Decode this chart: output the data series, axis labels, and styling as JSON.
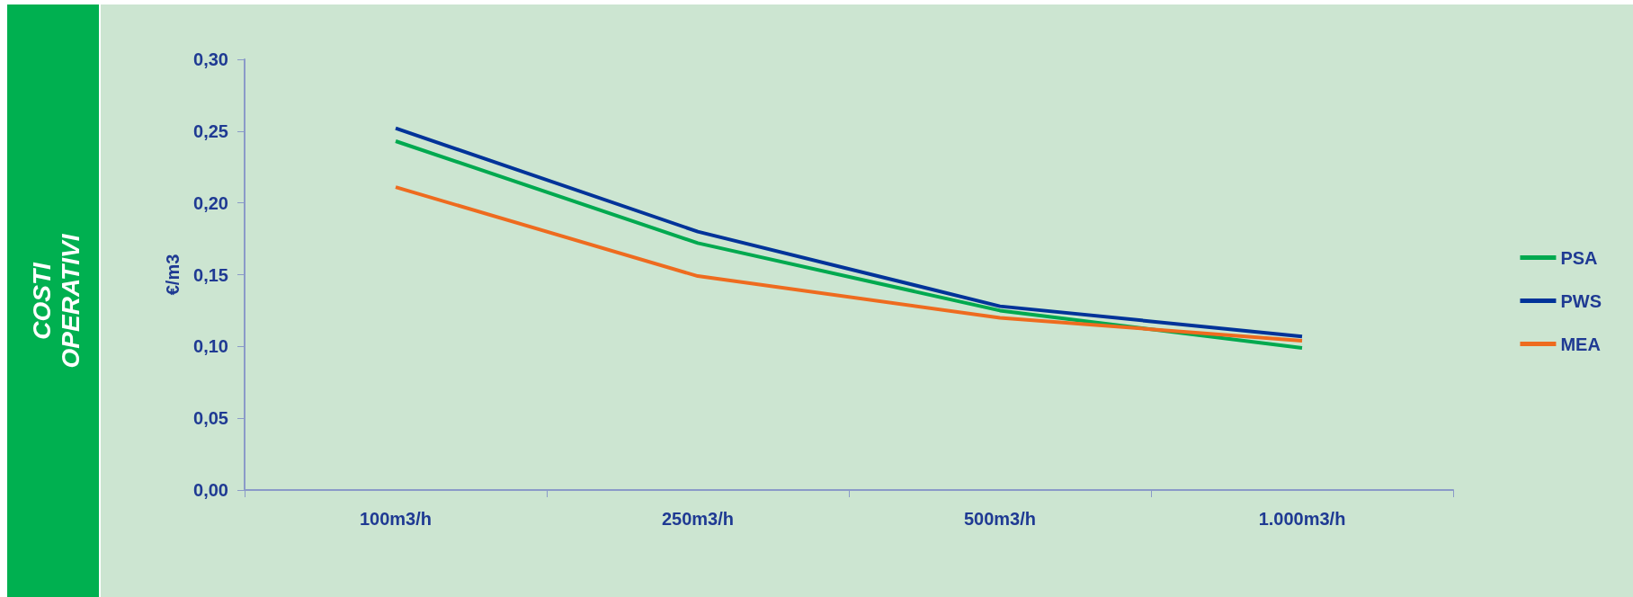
{
  "chart_data": {
    "type": "line",
    "title": "COSTI\nOPERATIVI",
    "ylabel": "€/m3",
    "categories": [
      "100m3/h",
      "250m3/h",
      "500m3/h",
      "1.000m3/h"
    ],
    "series": [
      {
        "name": "PSA",
        "color": "#00a94f",
        "values": [
          0.243,
          0.172,
          0.125,
          0.099
        ]
      },
      {
        "name": "PWS",
        "color": "#003399",
        "values": [
          0.252,
          0.18,
          0.128,
          0.107
        ]
      },
      {
        "name": "MEA",
        "color": "#ee6b1f",
        "values": [
          0.211,
          0.149,
          0.12,
          0.104
        ]
      }
    ],
    "ylim": [
      0,
      0.3
    ],
    "yticks": [
      {
        "value": 0,
        "label": "0,00"
      },
      {
        "value": 0.05,
        "label": "0,05"
      },
      {
        "value": 0.1,
        "label": "0,10"
      },
      {
        "value": 0.15,
        "label": "0,15"
      },
      {
        "value": 0.2,
        "label": "0,20"
      },
      {
        "value": 0.25,
        "label": "0,25"
      },
      {
        "value": 0.3,
        "label": "0,30"
      }
    ],
    "grid": false,
    "legend": "right",
    "marker": "none",
    "line_style": "solid"
  }
}
